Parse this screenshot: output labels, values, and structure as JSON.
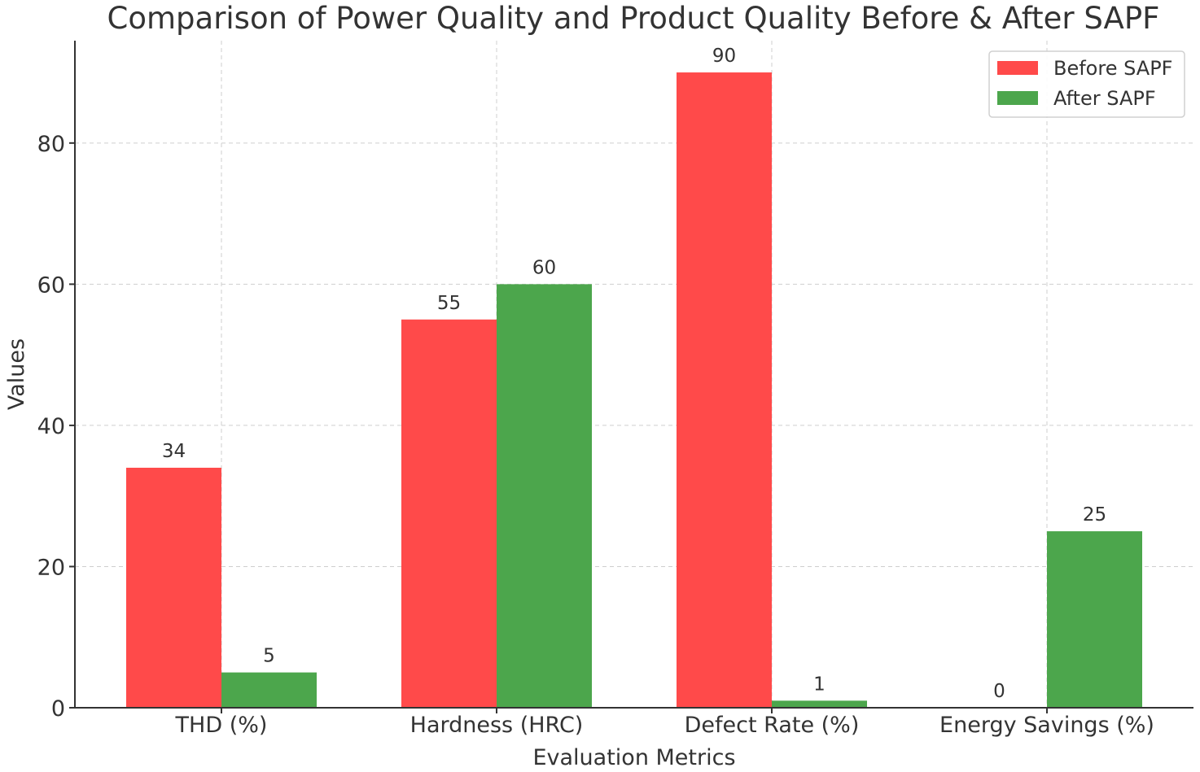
{
  "chart_data": {
    "type": "bar",
    "title": "Comparison of Power Quality and Product Quality Before & After SAPF",
    "xlabel": "Evaluation Metrics",
    "ylabel": "Values",
    "categories": [
      "THD (%)",
      "Hardness (HRC)",
      "Defect Rate (%)",
      "Energy Savings (%)"
    ],
    "series": [
      {
        "name": "Before SAPF",
        "color": "#ff4a4a",
        "values": [
          34,
          55,
          90,
          0
        ]
      },
      {
        "name": "After SAPF",
        "color": "#4ca64c",
        "values": [
          5,
          60,
          1,
          25
        ]
      }
    ],
    "data_labels": [
      [
        "34",
        "55",
        "90",
        "0"
      ],
      [
        "5",
        "60",
        "1",
        "25"
      ]
    ],
    "yticks": [
      0,
      20,
      40,
      60,
      80
    ],
    "ytick_labels": [
      "0",
      "20",
      "40",
      "60",
      "80"
    ],
    "ylim": [
      0,
      94.5
    ],
    "grid": true,
    "legend_position": "top-right"
  }
}
